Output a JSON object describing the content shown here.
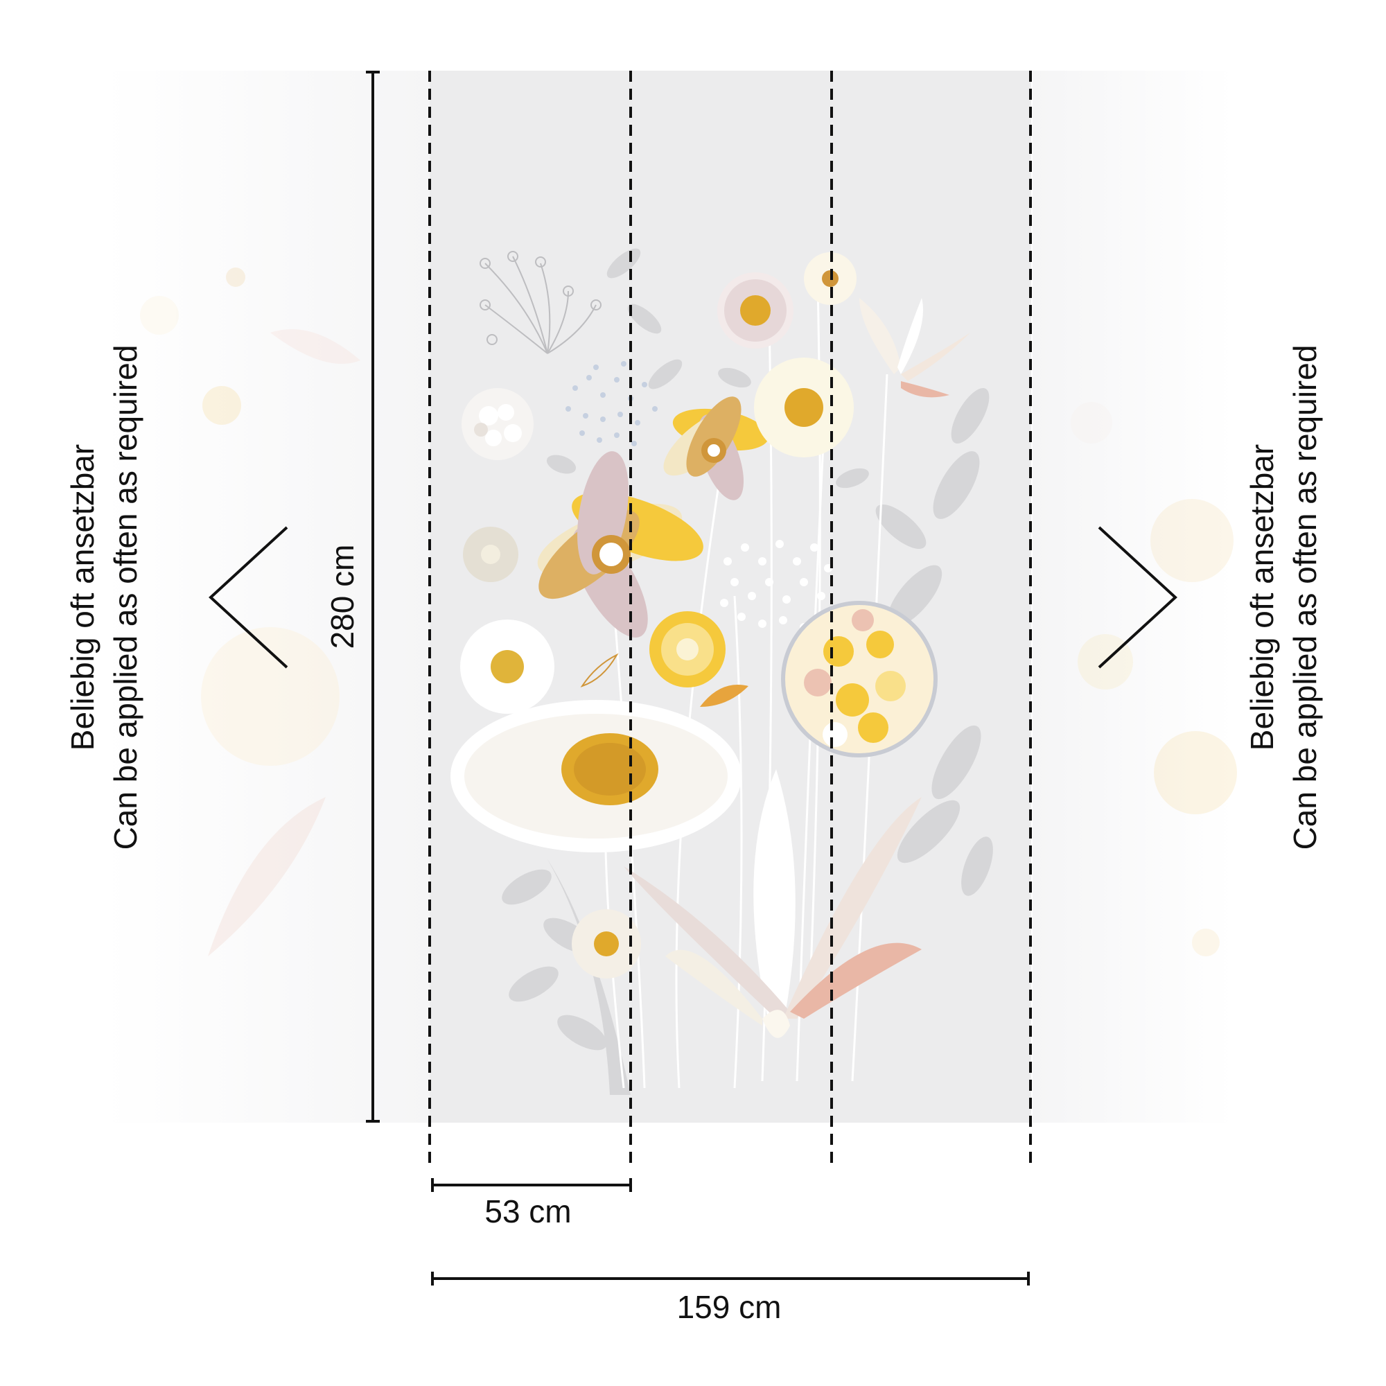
{
  "labels": {
    "height": "280 cm",
    "panel_width": "53 cm",
    "total_width": "159 cm",
    "repeat_note_de": "Beliebig oft ansetzbar",
    "repeat_note_en": "Can be applied as often as required"
  },
  "colors": {
    "panel_bg": "#ececed",
    "line": "#111111",
    "petal_white": "#ffffff",
    "petal_cream": "#f6f0dc",
    "petal_pink": "#d9c3c6",
    "petal_yellow": "#f5c93c",
    "center_gold": "#e0a92c",
    "leaf_grey": "#d3d3d5",
    "leaf_pink": "#e9b7a6",
    "stem": "#ffffff"
  },
  "icons": {
    "left_arrow": "chevron-left-icon",
    "right_arrow": "chevron-right-icon"
  }
}
